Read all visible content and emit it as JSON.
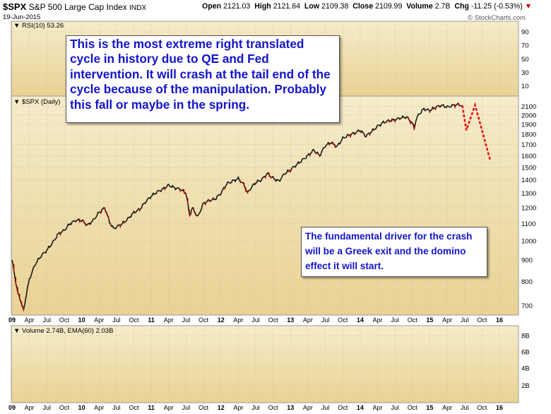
{
  "header": {
    "symbol": "$SPX",
    "name": "S&P 500 Large Cap Index",
    "exchange": "INDX",
    "date": "19-Jun-2015",
    "open_label": "Open",
    "open": "2121.03",
    "high_label": "High",
    "high": "2121.64",
    "low_label": "Low",
    "low": "2109.38",
    "close_label": "Close",
    "close": "2109.99",
    "volume_label": "Volume",
    "volume": "2.7B",
    "chg_label": "Chg",
    "chg": "-11.25 (-0.53%)",
    "chg_arrow": "▼",
    "watermark": "© StockCharts.com"
  },
  "panels": {
    "rsi_label": "RSI(10) 53.26",
    "price_label": "$SPX (Daily)",
    "volume_label": "Volume 2.74B, EMA(60) 2.03B"
  },
  "annotations": {
    "main_text": "This is the most extreme right translated cycle in history due to QE and Fed intervention. It will crash at the tail end of the cycle because of the manipulation. Probably this fall or maybe in the spring.",
    "driver_text": "The fundamental driver for the crash will be a Greek exit and the domino effect it will start."
  },
  "colors": {
    "panel_top": "#f6eccb",
    "panel_bottom": "#e9d293",
    "price_line": "#1a1a1a",
    "down_tick": "#cc0000",
    "projection": "#ee1111",
    "annotation_text": "#1414c8",
    "chg_arrow": "#cc0000"
  },
  "chart_data": {
    "type": "line",
    "title": "$SPX S&P 500 Large Cap Index",
    "ylabel": "",
    "xlabel": "",
    "ylim": [
      650,
      2200
    ],
    "y_ticks": [
      700,
      800,
      900,
      1000,
      1100,
      1200,
      1300,
      1400,
      1500,
      1600,
      1700,
      1800,
      1900,
      2000,
      2100
    ],
    "rsi_ticks": [
      10,
      30,
      50,
      70,
      90
    ],
    "volume_ticks": [
      "2B",
      "4B",
      "6B",
      "8B"
    ],
    "x_ticks": [
      "09",
      "Apr",
      "Jul",
      "Oct",
      "10",
      "Apr",
      "Jul",
      "Oct",
      "11",
      "Apr",
      "Jul",
      "Oct",
      "12",
      "Apr",
      "Jul",
      "Oct",
      "13",
      "Apr",
      "Jul",
      "Oct",
      "14",
      "Apr",
      "Jul",
      "Oct",
      "15",
      "Apr",
      "Jul",
      "Oct",
      "16"
    ],
    "x_tick_months": [
      0,
      3,
      6,
      9,
      12,
      15,
      18,
      21,
      24,
      27,
      30,
      33,
      36,
      39,
      42,
      45,
      48,
      51,
      54,
      57,
      60,
      63,
      66,
      69,
      72,
      75,
      78,
      81,
      84
    ],
    "grid": true,
    "series": [
      {
        "x_months": [
          0,
          0.5,
          1.0,
          1.5,
          2.0,
          2.5,
          3,
          4,
          5,
          6,
          7,
          8,
          9,
          10,
          11,
          12,
          13,
          14,
          15,
          16,
          16.8,
          17.5,
          18,
          19,
          20,
          21,
          22,
          23,
          24,
          25,
          26,
          27,
          28,
          29,
          30,
          30.6,
          31.1,
          32,
          33,
          34,
          35,
          36,
          37,
          38,
          39,
          40,
          40.6,
          41,
          42,
          43,
          44,
          44.8,
          45.5,
          46,
          47,
          48,
          49,
          50,
          51,
          52,
          53,
          54,
          55,
          56,
          57,
          58,
          59,
          60,
          61,
          62,
          63,
          64,
          65,
          66,
          67,
          68,
          69,
          69.3,
          69.6,
          70,
          71,
          72,
          73,
          74,
          75,
          76,
          77,
          77.6
        ],
        "values": [
          900,
          820,
          750,
          720,
          680,
          750,
          810,
          880,
          920,
          950,
          990,
          1040,
          1060,
          1100,
          1120,
          1120,
          1090,
          1120,
          1170,
          1200,
          1110,
          1070,
          1080,
          1100,
          1130,
          1170,
          1190,
          1240,
          1280,
          1310,
          1330,
          1360,
          1340,
          1330,
          1300,
          1150,
          1200,
          1140,
          1230,
          1250,
          1260,
          1300,
          1370,
          1390,
          1410,
          1360,
          1300,
          1330,
          1380,
          1400,
          1450,
          1420,
          1400,
          1390,
          1450,
          1480,
          1520,
          1560,
          1600,
          1650,
          1600,
          1690,
          1720,
          1680,
          1760,
          1790,
          1810,
          1840,
          1780,
          1830,
          1880,
          1920,
          1940,
          1950,
          1970,
          1980,
          1910,
          1860,
          1940,
          2000,
          2070,
          2050,
          2090,
          2110,
          2090,
          2110,
          2120,
          2110
        ]
      },
      {
        "name": "projection",
        "x_months": [
          77.6,
          78.3,
          79.8,
          82.4
        ],
        "values": [
          2110,
          1840,
          2115,
          1560
        ]
      }
    ]
  }
}
